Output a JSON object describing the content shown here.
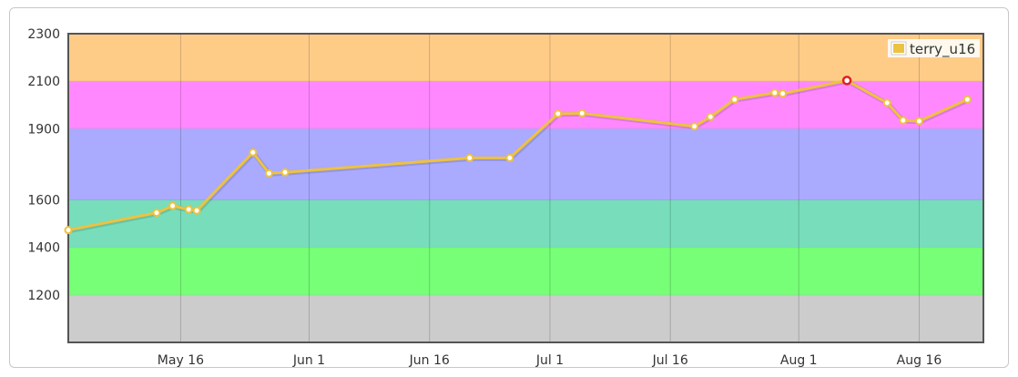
{
  "chart_data": {
    "type": "line",
    "x_type": "date",
    "xlim": [
      "2015-05-02",
      "2015-08-24"
    ],
    "ylim": [
      1000,
      2300
    ],
    "y_ticks": [
      1200,
      1400,
      1600,
      1900,
      2100,
      2300
    ],
    "x_ticks": [
      {
        "date": "2015-05-16",
        "label": "May 16"
      },
      {
        "date": "2015-06-01",
        "label": "Jun 1"
      },
      {
        "date": "2015-06-16",
        "label": "Jun 16"
      },
      {
        "date": "2015-07-01",
        "label": "Jul 1"
      },
      {
        "date": "2015-07-16",
        "label": "Jul 16"
      },
      {
        "date": "2015-08-01",
        "label": "Aug 1"
      },
      {
        "date": "2015-08-16",
        "label": "Aug 16"
      }
    ],
    "bands": [
      {
        "from": 1000,
        "to": 1200,
        "color": "#cccccc"
      },
      {
        "from": 1200,
        "to": 1400,
        "color": "#77ff77"
      },
      {
        "from": 1400,
        "to": 1600,
        "color": "#77ddbb"
      },
      {
        "from": 1600,
        "to": 1900,
        "color": "#aaaaff"
      },
      {
        "from": 1900,
        "to": 2100,
        "color": "#ff88ff"
      },
      {
        "from": 2100,
        "to": 2300,
        "color": "#ffcc88"
      }
    ],
    "grid": true,
    "legend": {
      "position": "top-right"
    },
    "series": [
      {
        "name": "terry_u16",
        "color": "#edc240",
        "points": [
          {
            "x": "2015-05-02",
            "y": 1473
          },
          {
            "x": "2015-05-13",
            "y": 1546
          },
          {
            "x": "2015-05-15",
            "y": 1575
          },
          {
            "x": "2015-05-17",
            "y": 1560
          },
          {
            "x": "2015-05-18",
            "y": 1555
          },
          {
            "x": "2015-05-25",
            "y": 1800
          },
          {
            "x": "2015-05-27",
            "y": 1712
          },
          {
            "x": "2015-05-29",
            "y": 1716
          },
          {
            "x": "2015-06-21",
            "y": 1777
          },
          {
            "x": "2015-06-26",
            "y": 1777
          },
          {
            "x": "2015-07-02",
            "y": 1963
          },
          {
            "x": "2015-07-05",
            "y": 1965
          },
          {
            "x": "2015-07-19",
            "y": 1910
          },
          {
            "x": "2015-07-21",
            "y": 1950
          },
          {
            "x": "2015-07-24",
            "y": 2023
          },
          {
            "x": "2015-07-29",
            "y": 2051
          },
          {
            "x": "2015-07-30",
            "y": 2048
          },
          {
            "x": "2015-08-07",
            "y": 2103,
            "highlight": true
          },
          {
            "x": "2015-08-12",
            "y": 2009
          },
          {
            "x": "2015-08-14",
            "y": 1935
          },
          {
            "x": "2015-08-16",
            "y": 1932
          },
          {
            "x": "2015-08-22",
            "y": 2023
          }
        ]
      }
    ]
  }
}
